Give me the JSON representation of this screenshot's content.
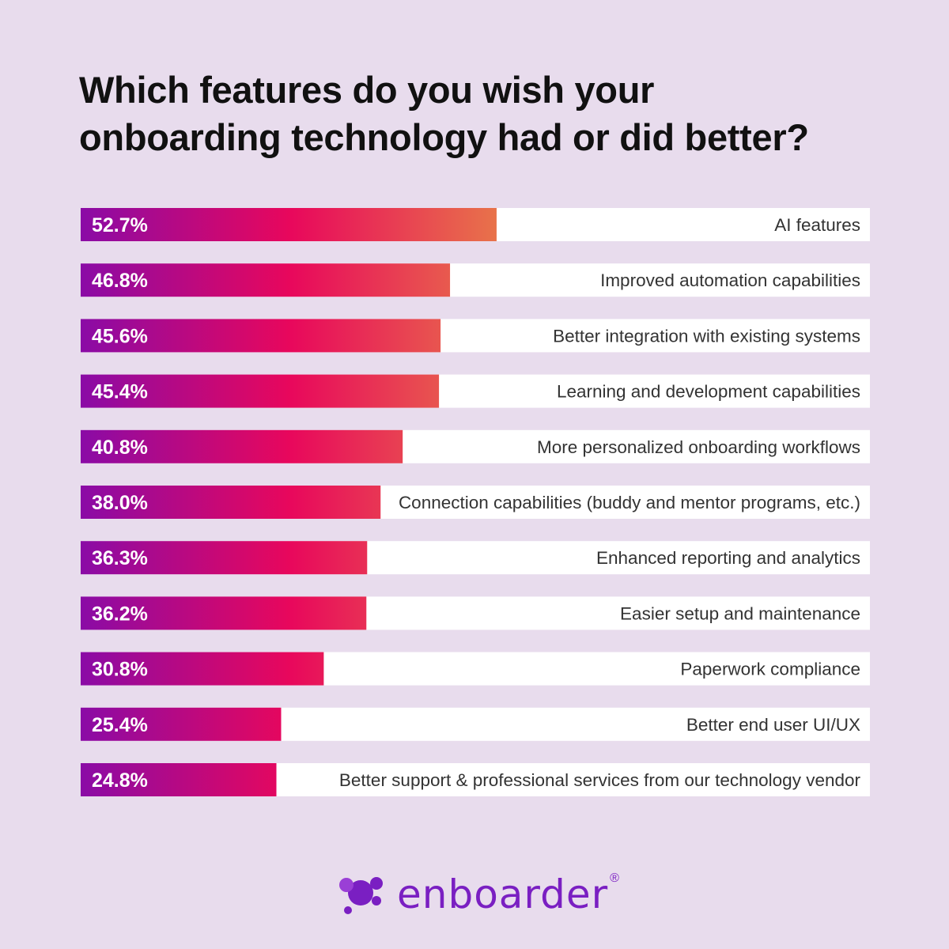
{
  "chart_data": {
    "type": "bar",
    "orientation": "horizontal",
    "title_lines": [
      "Which features do you wish your",
      "onboarding technology had or did better?"
    ],
    "categories": [
      "AI features",
      "Improved automation capabilities",
      "Better integration with existing systems",
      "Learning and development capabilities",
      "More personalized onboarding workflows",
      "Connection capabilities (buddy and mentor programs, etc.)",
      "Enhanced reporting and analytics",
      "Easier setup and maintenance",
      "Paperwork compliance",
      "Better end user UI/UX",
      "Better support & professional services from our technology vendor"
    ],
    "values": [
      52.7,
      46.8,
      45.6,
      45.4,
      40.8,
      38.0,
      36.3,
      36.2,
      30.8,
      25.4,
      24.8
    ],
    "value_labels": [
      "52.7%",
      "46.8%",
      "45.6%",
      "45.4%",
      "40.8%",
      "38.0%",
      "36.3%",
      "36.2%",
      "30.8%",
      "25.4%",
      "24.8%"
    ],
    "xlim": [
      0,
      100
    ],
    "grid": false,
    "legend": "none",
    "colors": {
      "gradient_start": "#8a0ba6",
      "gradient_mid": "#e8075c",
      "gradient_end": "#e8734a",
      "track": "#ffffff",
      "value_text": "#ffffff",
      "label_text": "#333333"
    }
  },
  "brand": {
    "name": "enboarder",
    "registered": "®",
    "color": "#7a1fc2",
    "icon": "enboarder-logo-icon"
  }
}
